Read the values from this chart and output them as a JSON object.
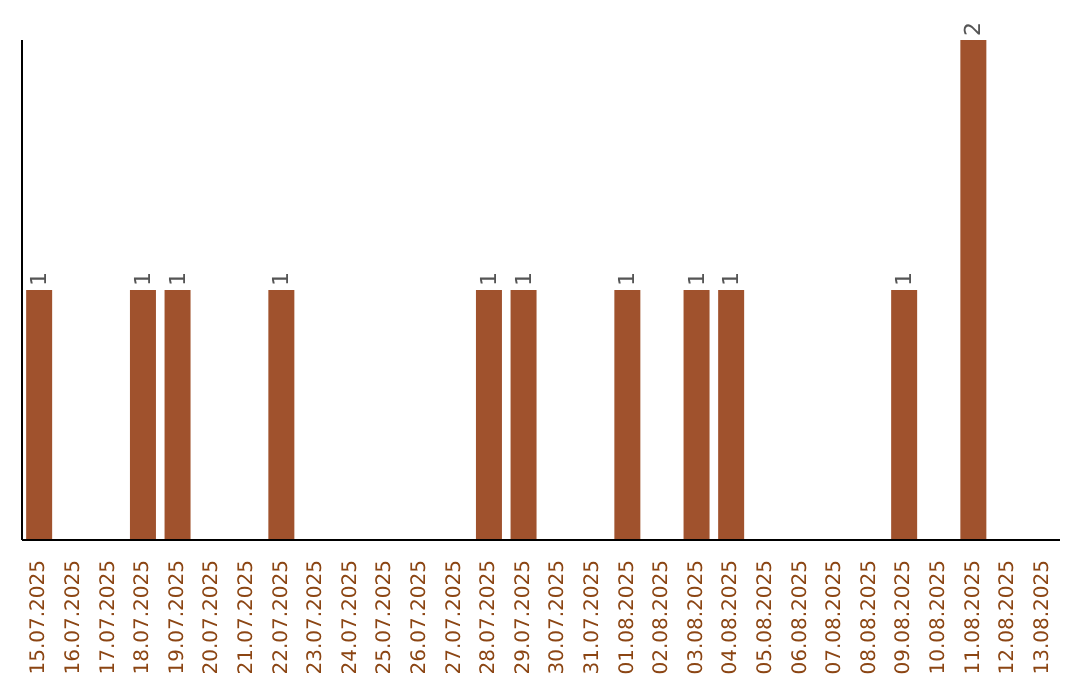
{
  "chart_data": {
    "type": "bar",
    "categories": [
      "15.07.2025",
      "16.07.2025",
      "17.07.2025",
      "18.07.2025",
      "19.07.2025",
      "20.07.2025",
      "21.07.2025",
      "22.07.2025",
      "23.07.2025",
      "24.07.2025",
      "25.07.2025",
      "26.07.2025",
      "27.07.2025",
      "28.07.2025",
      "29.07.2025",
      "30.07.2025",
      "31.07.2025",
      "01.08.2025",
      "02.08.2025",
      "03.08.2025",
      "04.08.2025",
      "05.08.2025",
      "06.08.2025",
      "07.08.2025",
      "08.08.2025",
      "09.08.2025",
      "10.08.2025",
      "11.08.2025",
      "12.08.2025",
      "13.08.2025"
    ],
    "values": [
      1,
      0,
      0,
      1,
      1,
      0,
      0,
      1,
      0,
      0,
      0,
      0,
      0,
      1,
      1,
      0,
      0,
      1,
      0,
      1,
      1,
      0,
      0,
      0,
      0,
      1,
      0,
      2,
      0,
      0
    ],
    "value_labels": [
      "1",
      null,
      null,
      "1",
      "1",
      null,
      null,
      "1",
      null,
      null,
      null,
      null,
      null,
      "1",
      "1",
      null,
      null,
      "1",
      null,
      "1",
      "1",
      null,
      null,
      null,
      null,
      "1",
      null,
      "2",
      null,
      null
    ],
    "color": "#a0522d",
    "grid": false,
    "legend": false
  }
}
